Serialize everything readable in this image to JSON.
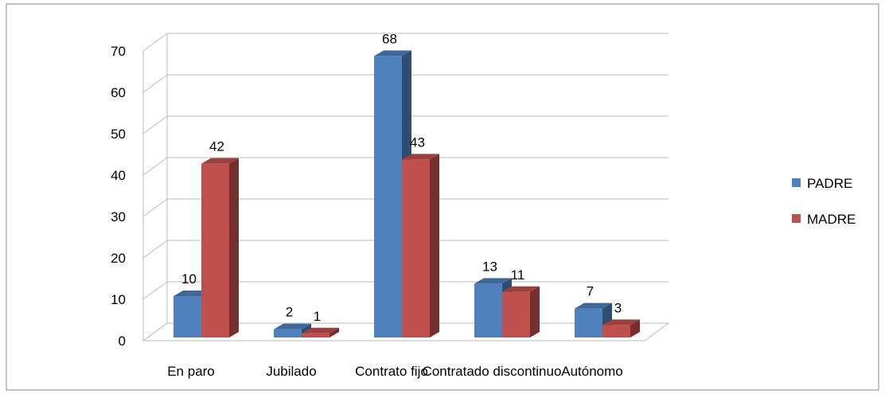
{
  "chart_data": {
    "type": "bar3d",
    "categories": [
      "En paro",
      "Jubilado",
      "Contrato fijo",
      "Contratado discontinuo",
      "Autónomo"
    ],
    "series": [
      {
        "name": "PADRE",
        "color": "#4f81bd",
        "values": [
          10,
          2,
          68,
          13,
          7
        ]
      },
      {
        "name": "MADRE",
        "color": "#c0504d",
        "values": [
          42,
          1,
          43,
          11,
          3
        ]
      }
    ],
    "ylim": [
      0,
      70
    ],
    "yticks": [
      0,
      10,
      20,
      30,
      40,
      50,
      60,
      70
    ],
    "grid": true,
    "legend": "right"
  }
}
